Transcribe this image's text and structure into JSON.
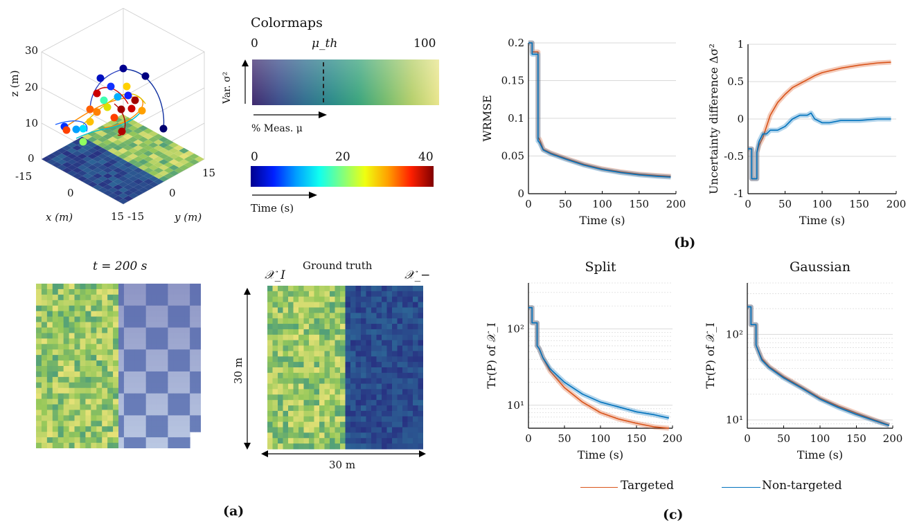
{
  "panel_a": {
    "caption": "(a)",
    "colormaps": {
      "title": "Colormaps",
      "var_min": "0",
      "var_mid": "μ_th",
      "var_max": "100",
      "var_axis": "Var. σ²",
      "meas_axis": "% Meas. μ",
      "time_ticks": [
        "0",
        "20",
        "40"
      ],
      "time_axis": "Time (s)"
    },
    "plot3d": {
      "zlabel": "z (m)",
      "xlabel": "x (m)",
      "ylabel": "y (m)",
      "z_ticks": [
        "0",
        "10",
        "20",
        "30"
      ],
      "x_ticks": [
        "-15",
        "0",
        "15"
      ],
      "y_ticks": [
        "15",
        "0",
        "-15"
      ]
    },
    "estimate_title": "t = 200 s",
    "ground_truth": {
      "title": "Ground truth",
      "left_label": "𝒳_I",
      "right_label": "𝒳_−",
      "vertical_dim": "30 m",
      "horizontal_dim": "30 m"
    }
  },
  "panel_b": {
    "caption": "(b)"
  },
  "panel_c": {
    "caption": "(c)"
  },
  "colors": {
    "targeted": "#d95319",
    "non_targeted": "#0072bd",
    "grid": "#d9d9d9"
  },
  "legend": {
    "targeted": "Targeted",
    "non_targeted": "Non-targeted"
  },
  "chart_data": [
    {
      "id": "wrmse",
      "type": "line",
      "xlabel": "Time (s)",
      "ylabel": "WRMSE",
      "xlim": [
        0,
        200
      ],
      "ylim": [
        0,
        0.2
      ],
      "xticks": [
        0,
        50,
        100,
        150,
        200
      ],
      "yticks": [
        0,
        0.05,
        0.1,
        0.15,
        0.2
      ],
      "ytick_labels": [
        "0",
        "0.05",
        "0.1",
        "0.15",
        "0.2"
      ],
      "grid": "horizontal",
      "series": [
        {
          "name": "Targeted",
          "x": [
            0,
            5,
            5,
            13,
            13,
            15,
            20,
            30,
            50,
            75,
            100,
            125,
            150,
            175,
            193
          ],
          "y": [
            0.2,
            0.2,
            0.188,
            0.188,
            0.075,
            0.072,
            0.059,
            0.054,
            0.047,
            0.039,
            0.033,
            0.029,
            0.026,
            0.024,
            0.023
          ]
        },
        {
          "name": "Non-targeted",
          "x": [
            0,
            5,
            5,
            13,
            13,
            15,
            20,
            30,
            50,
            75,
            100,
            125,
            150,
            175,
            193
          ],
          "y": [
            0.2,
            0.2,
            0.185,
            0.185,
            0.07,
            0.068,
            0.058,
            0.053,
            0.046,
            0.038,
            0.032,
            0.028,
            0.025,
            0.023,
            0.022
          ]
        }
      ]
    },
    {
      "id": "uncertainty",
      "type": "line",
      "xlabel": "Time (s)",
      "ylabel": "Uncertainty difference Δσ²",
      "xlim": [
        0,
        200
      ],
      "ylim": [
        -1,
        1
      ],
      "xticks": [
        0,
        50,
        100,
        150,
        200
      ],
      "yticks": [
        -1,
        -0.5,
        0,
        0.5,
        1
      ],
      "ytick_labels": [
        "-1",
        "-0.5",
        "0",
        "0.5",
        "1"
      ],
      "grid": "horizontal",
      "series": [
        {
          "name": "Targeted",
          "x": [
            0,
            5,
            5,
            12,
            12,
            15,
            20,
            25,
            30,
            40,
            50,
            60,
            75,
            90,
            100,
            125,
            150,
            175,
            193
          ],
          "y": [
            -0.4,
            -0.4,
            -0.8,
            -0.8,
            -0.45,
            -0.35,
            -0.25,
            -0.1,
            0.05,
            0.22,
            0.33,
            0.42,
            0.5,
            0.58,
            0.62,
            0.68,
            0.72,
            0.75,
            0.76
          ]
        },
        {
          "name": "Non-targeted",
          "x": [
            0,
            5,
            5,
            12,
            12,
            15,
            20,
            25,
            30,
            40,
            50,
            60,
            70,
            80,
            85,
            90,
            100,
            110,
            125,
            150,
            175,
            193
          ],
          "y": [
            -0.4,
            -0.4,
            -0.8,
            -0.8,
            -0.45,
            -0.3,
            -0.2,
            -0.2,
            -0.15,
            -0.15,
            -0.1,
            0.0,
            0.05,
            0.05,
            0.08,
            0.0,
            -0.05,
            -0.05,
            -0.02,
            -0.02,
            0.0,
            0.0
          ]
        }
      ]
    },
    {
      "id": "split",
      "type": "line",
      "title": "Split",
      "xlabel": "Time (s)",
      "ylabel": "Tr(P) of 𝒳_I",
      "yscale": "log",
      "xlim": [
        0,
        200
      ],
      "ylim": [
        5,
        400
      ],
      "xticks": [
        0,
        50,
        100,
        150,
        200
      ],
      "yticks": [
        10,
        100
      ],
      "ytick_labels": [
        "10¹",
        "10²"
      ],
      "grid": "horizontal",
      "series": [
        {
          "name": "Targeted",
          "x": [
            0,
            5,
            5,
            12,
            12,
            15,
            20,
            30,
            50,
            75,
            100,
            125,
            150,
            175,
            195
          ],
          "y": [
            190,
            190,
            120,
            120,
            60,
            55,
            42,
            28,
            17,
            11,
            8,
            6.6,
            5.8,
            5.2,
            4.9
          ]
        },
        {
          "name": "Non-targeted",
          "x": [
            0,
            5,
            5,
            12,
            12,
            15,
            20,
            30,
            50,
            75,
            100,
            125,
            150,
            175,
            195
          ],
          "y": [
            190,
            190,
            120,
            120,
            60,
            55,
            42,
            30,
            20,
            14,
            11,
            9.5,
            8.2,
            7.5,
            6.8
          ]
        }
      ]
    },
    {
      "id": "gaussian",
      "type": "line",
      "title": "Gaussian",
      "xlabel": "Time (s)",
      "ylabel": "Tr(P) of 𝒳_I",
      "yscale": "log",
      "xlim": [
        0,
        200
      ],
      "ylim": [
        8,
        400
      ],
      "xticks": [
        0,
        50,
        100,
        150,
        200
      ],
      "yticks": [
        10,
        100
      ],
      "ytick_labels": [
        "10¹",
        "10²"
      ],
      "grid": "horizontal",
      "series": [
        {
          "name": "Targeted",
          "x": [
            0,
            5,
            5,
            12,
            12,
            15,
            20,
            30,
            50,
            75,
            100,
            125,
            150,
            175,
            195
          ],
          "y": [
            210,
            210,
            130,
            130,
            75,
            65,
            52,
            42,
            32,
            24,
            18,
            14.5,
            12,
            10,
            8.7
          ]
        },
        {
          "name": "Non-targeted",
          "x": [
            0,
            5,
            5,
            12,
            12,
            15,
            20,
            30,
            50,
            75,
            100,
            125,
            150,
            175,
            195
          ],
          "y": [
            210,
            210,
            130,
            130,
            75,
            64,
            50,
            41,
            31,
            23.5,
            17.5,
            14,
            11.6,
            9.8,
            8.6
          ]
        }
      ]
    }
  ]
}
